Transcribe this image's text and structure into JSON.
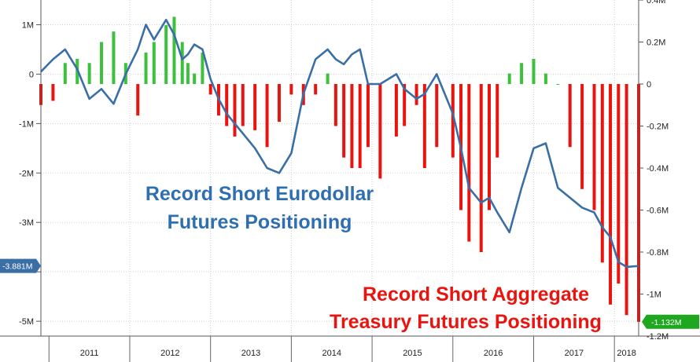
{
  "chart_data": {
    "type": "bar+line",
    "title": "",
    "annotations": {
      "line_label": [
        "Record Short Eurodollar",
        "Futures Positioning"
      ],
      "bar_label": [
        "Record Short Aggregate",
        "Treasury Futures Positioning"
      ]
    },
    "x_axis": {
      "tick_labels": [
        "2011",
        "2012",
        "2013",
        "2014",
        "2015",
        "2016",
        "2017",
        "2018"
      ]
    },
    "left_axis": {
      "ylim": [
        -5.3,
        1.5
      ],
      "unit": "millions of contracts",
      "tick_values": [
        1,
        0,
        -1,
        -2,
        -3,
        -4,
        -5
      ],
      "tick_labels": [
        "1M",
        "0",
        "-1M",
        "-2M",
        "-3M",
        "",
        "-5M"
      ]
    },
    "right_axis": {
      "ylim": [
        -1.2,
        0.4
      ],
      "unit": "millions of contracts",
      "tick_values": [
        0.4,
        0.2,
        0,
        -0.2,
        -0.4,
        -0.6,
        -0.8,
        -1.0,
        -1.2
      ],
      "tick_labels": [
        "0.4M",
        "0.2M",
        "0",
        "-0.2M",
        "-0.4M",
        "-0.6M",
        "-0.8M",
        "-1M",
        "-1.2M"
      ]
    },
    "last_value_flags": {
      "line": "-3.881M",
      "bars": "-1.132M"
    },
    "colors": {
      "line": "#3a6fa6",
      "positive_bars": "#3cc13c",
      "negative_bars": "#e8140f",
      "line_annotation": "#2f6fb0",
      "bar_annotation": "#e8140f",
      "right_axis_text": "#2a9a2a",
      "grid": "#cfcfcf"
    },
    "series": [
      {
        "name": "Eurodollar Futures Positioning",
        "axis": "left",
        "render": "line",
        "x": [
          2010.9,
          2011.05,
          2011.2,
          2011.35,
          2011.5,
          2011.65,
          2011.8,
          2011.95,
          2012.1,
          2012.2,
          2012.3,
          2012.45,
          2012.55,
          2012.65,
          2012.72,
          2012.8,
          2012.9,
          2013.0,
          2013.1,
          2013.2,
          2013.3,
          2013.4,
          2013.55,
          2013.7,
          2013.85,
          2014.0,
          2014.15,
          2014.3,
          2014.45,
          2014.55,
          2014.65,
          2014.75,
          2014.85,
          2014.95,
          2015.1,
          2015.3,
          2015.4,
          2015.55,
          2015.65,
          2015.8,
          2016.0,
          2016.1,
          2016.2,
          2016.35,
          2016.45,
          2016.55,
          2016.7,
          2016.85,
          2017.0,
          2017.15,
          2017.3,
          2017.45,
          2017.6,
          2017.75,
          2017.85,
          2017.95,
          2018.05,
          2018.15,
          2018.3
        ],
        "values": [
          0.05,
          0.3,
          0.5,
          0.1,
          -0.5,
          -0.3,
          -0.6,
          0.0,
          0.5,
          1.0,
          0.7,
          1.1,
          0.8,
          0.3,
          0.4,
          0.6,
          0.5,
          -0.1,
          -0.5,
          -0.8,
          -1.0,
          -1.2,
          -1.5,
          -1.9,
          -2.0,
          -1.6,
          -0.4,
          0.3,
          0.5,
          0.3,
          0.2,
          0.4,
          0.5,
          -0.2,
          -0.2,
          0.0,
          -0.3,
          -0.5,
          -0.4,
          0.0,
          -0.8,
          -1.5,
          -2.3,
          -2.6,
          -2.5,
          -2.8,
          -3.2,
          -2.3,
          -1.5,
          -1.4,
          -2.3,
          -2.5,
          -2.7,
          -2.8,
          -3.1,
          -3.3,
          -3.8,
          -3.9,
          -3.881
        ]
      },
      {
        "name": "Aggregate Treasury Futures Positioning",
        "axis": "right",
        "render": "bars",
        "x": [
          2010.9,
          2011.05,
          2011.2,
          2011.35,
          2011.5,
          2011.65,
          2011.8,
          2011.95,
          2012.1,
          2012.2,
          2012.3,
          2012.45,
          2012.55,
          2012.65,
          2012.72,
          2012.8,
          2012.9,
          2013.0,
          2013.1,
          2013.2,
          2013.3,
          2013.4,
          2013.55,
          2013.7,
          2013.85,
          2014.0,
          2014.15,
          2014.3,
          2014.45,
          2014.55,
          2014.65,
          2014.75,
          2014.85,
          2014.95,
          2015.1,
          2015.3,
          2015.4,
          2015.55,
          2015.65,
          2015.8,
          2016.0,
          2016.1,
          2016.2,
          2016.35,
          2016.45,
          2016.55,
          2016.7,
          2016.85,
          2017.0,
          2017.15,
          2017.3,
          2017.45,
          2017.6,
          2017.75,
          2017.85,
          2017.95,
          2018.05,
          2018.15,
          2018.3
        ],
        "values": [
          -0.1,
          -0.08,
          0.1,
          0.12,
          0.1,
          0.2,
          0.25,
          0.1,
          -0.15,
          0.15,
          0.2,
          0.28,
          0.32,
          0.2,
          0.1,
          0.05,
          0.15,
          -0.05,
          -0.15,
          -0.2,
          -0.25,
          -0.2,
          -0.22,
          -0.3,
          -0.18,
          -0.05,
          -0.1,
          -0.05,
          0.05,
          -0.2,
          -0.35,
          -0.4,
          -0.4,
          -0.3,
          -0.45,
          -0.25,
          -0.2,
          -0.1,
          -0.4,
          -0.3,
          -0.35,
          -0.6,
          -0.75,
          -0.8,
          -0.6,
          -0.35,
          0.05,
          0.1,
          0.12,
          0.05,
          0.0,
          -0.3,
          -0.5,
          -0.6,
          -0.85,
          -1.05,
          -0.95,
          -1.1,
          -1.132
        ]
      }
    ]
  }
}
